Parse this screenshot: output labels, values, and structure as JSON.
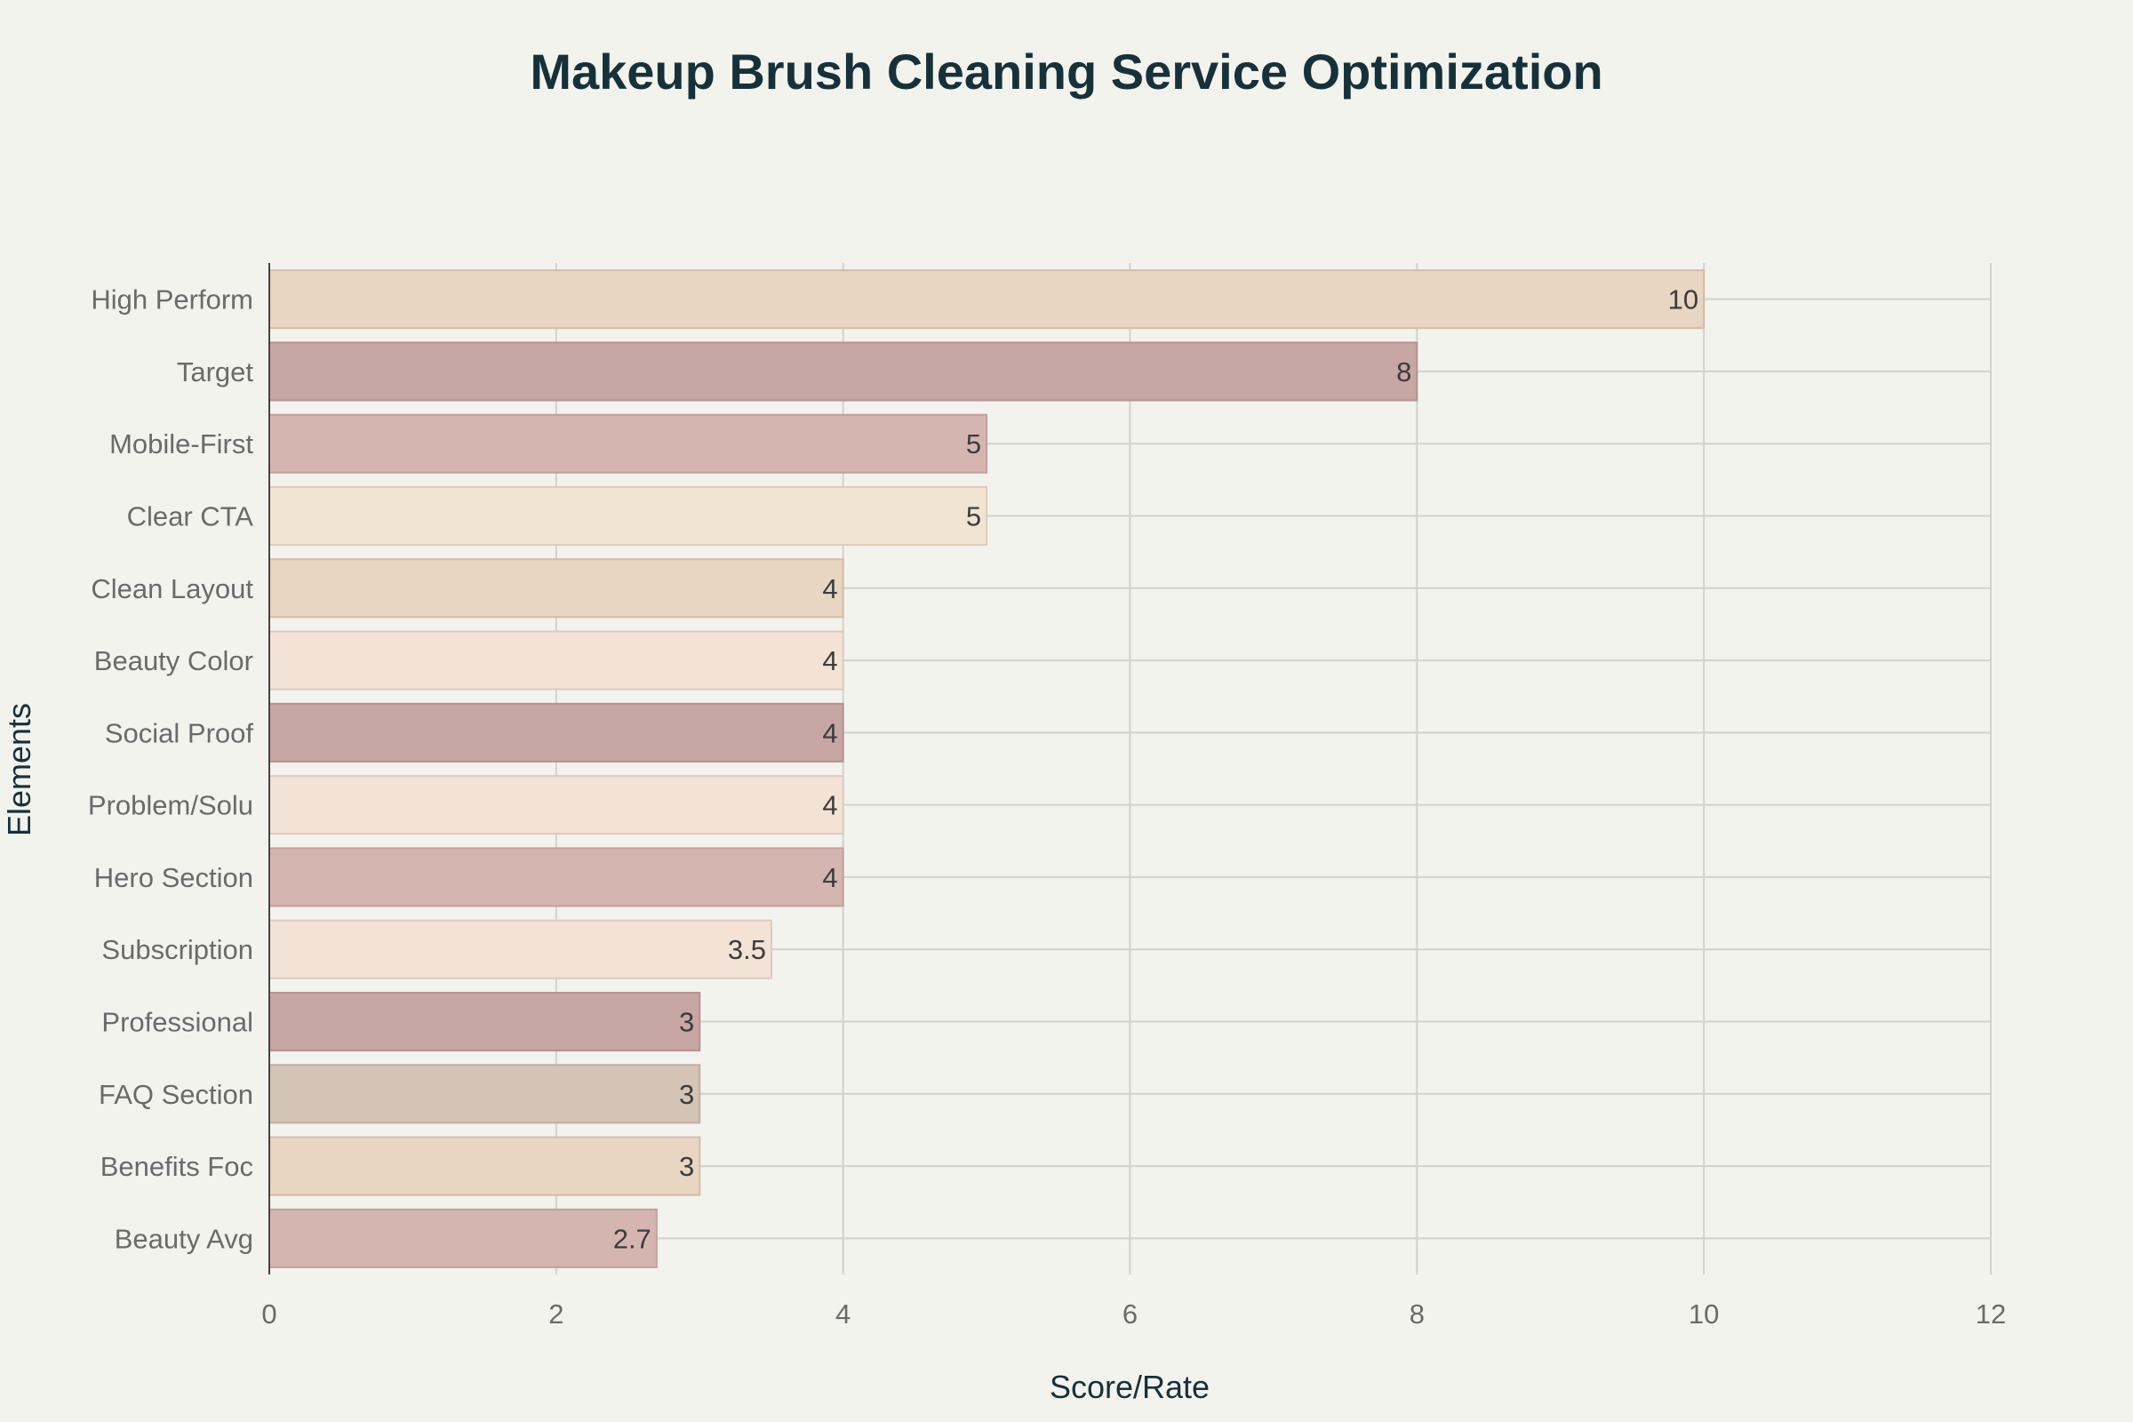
{
  "chart_data": {
    "type": "bar",
    "orientation": "horizontal",
    "title": "Makeup Brush Cleaning Service Optimization",
    "xlabel": "Score/Rate",
    "ylabel": "Elements",
    "xlim": [
      0,
      12
    ],
    "xticks": [
      0,
      2,
      4,
      6,
      8,
      10,
      12
    ],
    "grid": true,
    "categories": [
      "High Perform",
      "Target",
      "Mobile-First",
      "Clear CTA",
      "Clean Layout",
      "Beauty Color",
      "Social Proof",
      "Problem/Solu",
      "Hero Section",
      "Subscription",
      "Professional",
      "FAQ Section",
      "Benefits Foc",
      "Beauty Avg"
    ],
    "values": [
      10,
      8,
      5,
      5,
      4,
      4,
      4,
      4,
      4,
      3.5,
      3,
      3,
      3,
      2.7
    ],
    "value_labels": [
      "10",
      "8",
      "5",
      "5",
      "4",
      "4",
      "4",
      "4",
      "4",
      "3.5",
      "3",
      "3",
      "3",
      "2.7"
    ],
    "colors": [
      "#e8d5c2",
      "#c7a6a3",
      "#d5b5b0",
      "#f1e4d2",
      "#e8d5c2",
      "#f3e3d6",
      "#c7a6a3",
      "#f3e3d6",
      "#d5b5b0",
      "#f3e3d6",
      "#c7a6a3",
      "#d4c4b6",
      "#e8d5c2",
      "#d5b5b0"
    ],
    "stroke_colors": [
      "#d2bcab",
      "#b6918f",
      "#c39f9a",
      "#dccdb9",
      "#d2bcab",
      "#dccbbd",
      "#b6918f",
      "#dccbbd",
      "#c39f9a",
      "#dccbbd",
      "#b6918f",
      "#bfae9f",
      "#d2bcab",
      "#c39f9a"
    ]
  }
}
